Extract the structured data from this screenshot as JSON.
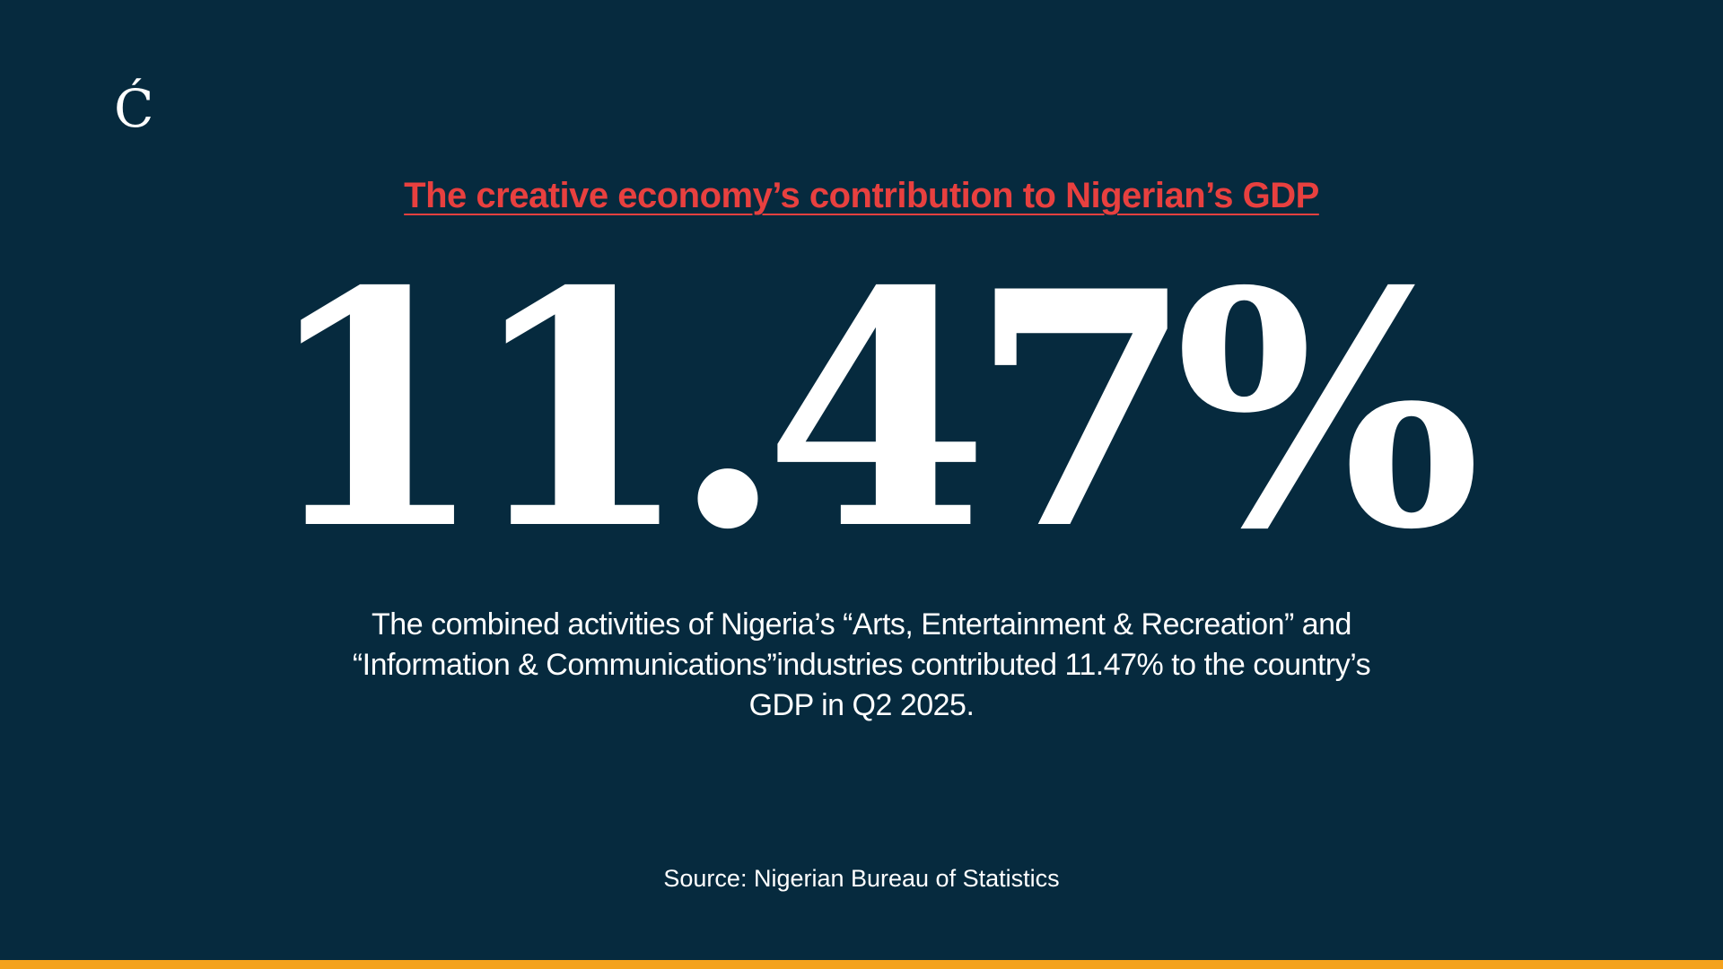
{
  "logo": {
    "text": "Ć"
  },
  "headline": "The creative economy’s contribution to Nigerian’s GDP",
  "stat": {
    "value": "11.47%"
  },
  "description": "The combined activities of Nigeria’s “Arts, Entertainment & Recreation” and “Information & Communications”industries contributed 11.47% to the country’s GDP in Q2 2025.",
  "source": "Source: Nigerian Bureau of Statistics",
  "colors": {
    "background": "#062a3e",
    "headline": "#e8403f",
    "accent_bar": "#f4a21d",
    "text": "#ffffff"
  }
}
